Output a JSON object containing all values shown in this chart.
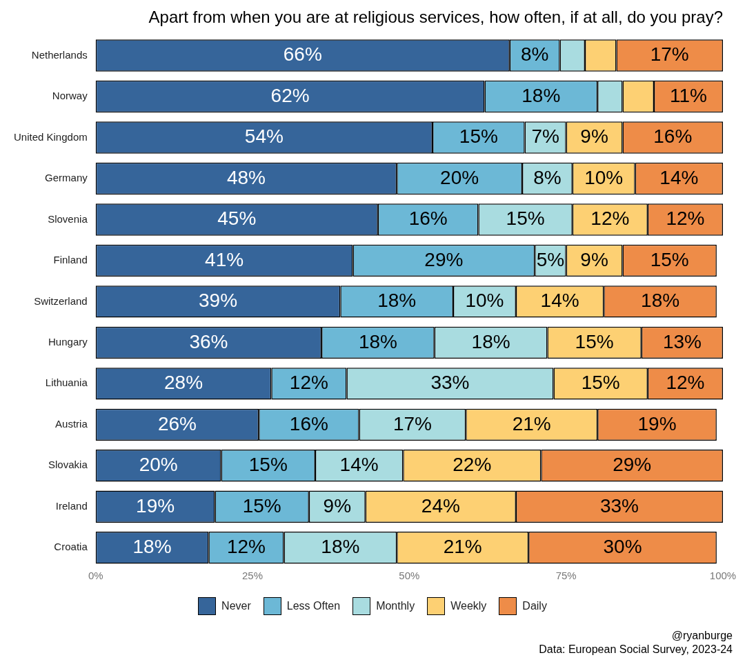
{
  "chart_data": {
    "type": "bar",
    "orientation": "horizontal",
    "stacked": true,
    "title": "Apart from when you are at religious services, how often, if at all, do you pray?",
    "categories": [
      "Netherlands",
      "Norway",
      "United Kingdom",
      "Germany",
      "Slovenia",
      "Finland",
      "Switzerland",
      "Hungary",
      "Lithuania",
      "Austria",
      "Slovakia",
      "Ireland",
      "Croatia"
    ],
    "series": [
      {
        "name": "Never",
        "color": "#36659a",
        "values": [
          66,
          62,
          53.7,
          48,
          45,
          41,
          39,
          36,
          28,
          26,
          20,
          19,
          18
        ],
        "value_labels": [
          "66%",
          "62%",
          "54%",
          "48%",
          "45%",
          "41%",
          "39%",
          "36%",
          "28%",
          "26%",
          "20%",
          "19%",
          "18%"
        ]
      },
      {
        "name": "Less Often",
        "color": "#6cb8d6",
        "values": [
          8,
          18,
          14.7,
          20,
          16,
          29,
          18,
          18,
          12,
          16,
          15,
          15,
          12
        ],
        "value_labels": [
          "8%",
          "18%",
          "15%",
          "20%",
          "16%",
          "29%",
          "18%",
          "18%",
          "12%",
          "16%",
          "15%",
          "15%",
          "12%"
        ]
      },
      {
        "name": "Monthly",
        "color": "#a9dce0",
        "values": [
          4,
          4,
          6.6,
          8,
          15,
          5,
          10,
          18,
          33,
          17,
          14,
          9,
          18
        ],
        "value_labels": [
          null,
          null,
          "7%",
          "8%",
          "15%",
          "5%",
          "10%",
          "18%",
          "33%",
          "17%",
          "14%",
          "9%",
          "18%"
        ]
      },
      {
        "name": "Weekly",
        "color": "#fdd073",
        "values": [
          5,
          5,
          9,
          10,
          12,
          9,
          14,
          15,
          15,
          21,
          22,
          24,
          21
        ],
        "value_labels": [
          null,
          null,
          "9%",
          "10%",
          "12%",
          "9%",
          "14%",
          "15%",
          "15%",
          "21%",
          "22%",
          "24%",
          "21%"
        ]
      },
      {
        "name": "Daily",
        "color": "#ee8c48",
        "values": [
          17,
          11,
          16,
          14,
          12,
          15,
          18,
          13,
          12,
          19,
          29,
          33,
          30
        ],
        "value_labels": [
          "17%",
          "11%",
          "16%",
          "14%",
          "12%",
          "15%",
          "18%",
          "13%",
          "12%",
          "19%",
          "29%",
          "33%",
          "30%"
        ]
      }
    ],
    "xlim": [
      0,
      100
    ],
    "xticks": [
      {
        "value": 0,
        "label": "0%"
      },
      {
        "value": 25,
        "label": "25%"
      },
      {
        "value": 50,
        "label": "50%"
      },
      {
        "value": 75,
        "label": "75%"
      },
      {
        "value": 100,
        "label": "100%"
      }
    ],
    "grid": false,
    "legend": "bottom",
    "annotations": [
      "@ryanburge",
      "Data: European Social Survey, 2023-24"
    ]
  }
}
